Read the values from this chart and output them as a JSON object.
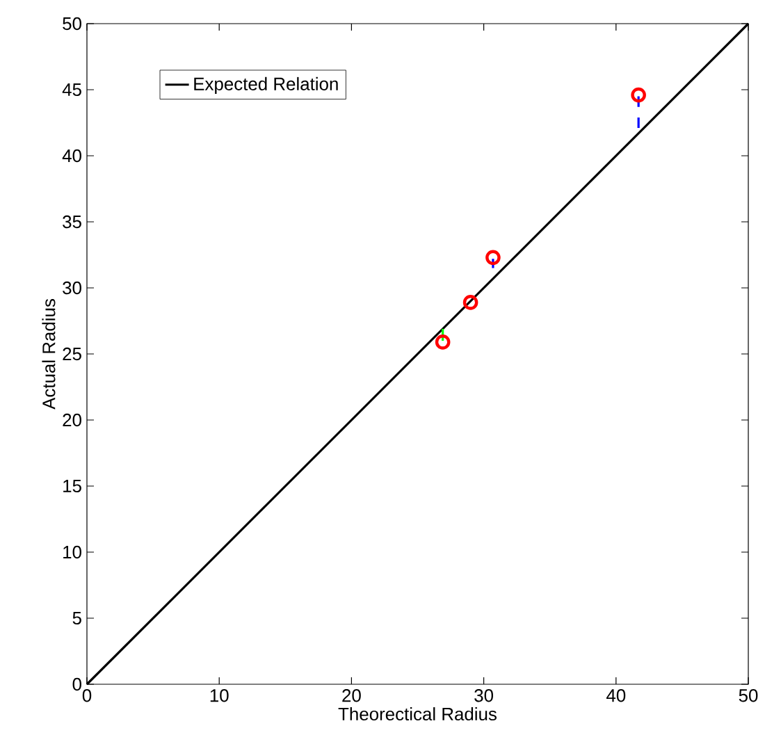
{
  "chart_data": {
    "type": "scatter",
    "xlabel": "Theorectical Radius",
    "ylabel": "Actual Radius",
    "xlim": [
      0,
      50
    ],
    "ylim": [
      0,
      50
    ],
    "xticks": [
      0,
      10,
      20,
      30,
      40,
      50
    ],
    "yticks": [
      0,
      5,
      10,
      15,
      20,
      25,
      30,
      35,
      40,
      45,
      50
    ],
    "grid": false,
    "legend": "top left",
    "series": [
      {
        "type": "line",
        "name": "Expected Relation",
        "color": "#000000",
        "x": [
          0,
          50
        ],
        "values": [
          0,
          50
        ],
        "marker": "none",
        "line_style": "solid"
      },
      {
        "color": "#ff0000",
        "x": [
          26.9,
          29.0,
          30.7,
          41.7
        ],
        "values": [
          25.9,
          28.9,
          32.3,
          44.6
        ],
        "marker": "circle"
      },
      {
        "type": "line",
        "color": "#00ff00",
        "x": [
          26.9,
          26.9
        ],
        "values": [
          26.0,
          26.9
        ],
        "marker": "none",
        "line_style": "dashed"
      },
      {
        "type": "line",
        "color": "#0000ff",
        "x": [
          30.7,
          30.7
        ],
        "values": [
          32.2,
          31.5
        ],
        "marker": "none",
        "line_style": "dashed"
      },
      {
        "type": "line",
        "color": "#0000ff",
        "x": [
          41.7,
          41.7
        ],
        "values": [
          44.5,
          42.1
        ],
        "marker": "none",
        "line_style": "dashed"
      }
    ]
  }
}
